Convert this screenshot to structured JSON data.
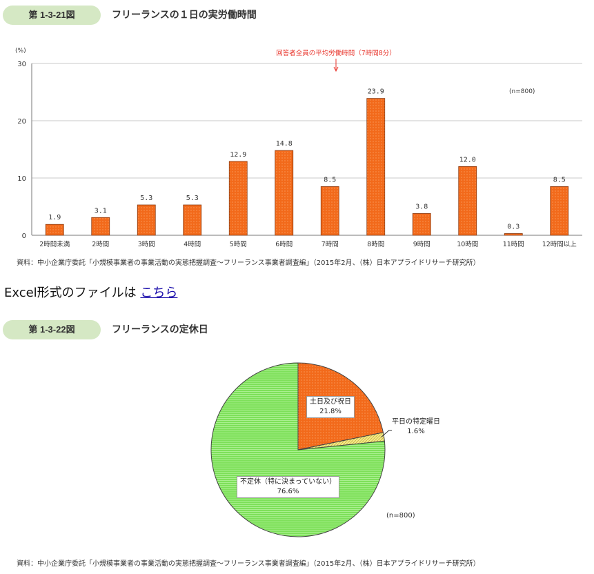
{
  "figure1": {
    "badge": "第 1-3-21図",
    "title": "フリーランスの１日の実労働時間",
    "source": "資料：中小企業庁委託「小規模事業者の事業活動の実態把握調査～フリーランス事業者調査編」（2015年2月、（株）日本アプライドリサーチ研究所）"
  },
  "excel": {
    "prefix": "Excel形式のファイルは",
    "link": "こちら"
  },
  "figure2": {
    "badge": "第 1-3-22図",
    "title": "フリーランスの定休日",
    "source": "資料：中小企業庁委託「小規模事業者の事業活動の実態把握調査～フリーランス事業者調査編」（2015年2月、（株）日本アプライドリサーチ研究所）"
  },
  "colors": {
    "bar_fill": "#f26a1b",
    "bar_stroke": "#8a3a10",
    "pie_green": "#7ee05a",
    "pie_orange": "#f26a1b",
    "pie_yellow": "#f3e98a",
    "annotation": "#e8332a",
    "badge_bg": "#d5e8c4"
  },
  "chart_data": [
    {
      "type": "bar",
      "unit_label": "(%)",
      "n_label": "(n=800)",
      "annotation": "回答者全員の平均労働時間（7時間8分）",
      "categories": [
        "2時間未満",
        "2時間",
        "3時間",
        "4時間",
        "5時間",
        "6時間",
        "7時間",
        "8時間",
        "9時間",
        "10時間",
        "11時間",
        "12時間以上"
      ],
      "values": [
        1.9,
        3.1,
        5.3,
        5.3,
        12.9,
        14.8,
        8.5,
        23.9,
        3.8,
        12.0,
        0.3,
        8.5
      ],
      "value_labels": [
        "1.9",
        "3.1",
        "5.3",
        "5.3",
        "12.9",
        "14.8",
        "8.5",
        "23.9",
        "3.8",
        "12.0",
        "0.3",
        "8.5"
      ],
      "yticks": [
        "0",
        "10",
        "20",
        "30"
      ],
      "ylim": [
        0,
        30
      ],
      "grid": true
    },
    {
      "type": "pie",
      "n_label": "(n=800)",
      "slices": [
        {
          "label": "土日及び祝日",
          "value": 21.8,
          "value_label": "21.8%"
        },
        {
          "label": "平日の特定曜日",
          "value": 1.6,
          "value_label": "1.6%"
        },
        {
          "label": "不定休（特に決まっていない）",
          "value": 76.6,
          "value_label": "76.6%"
        }
      ]
    }
  ]
}
